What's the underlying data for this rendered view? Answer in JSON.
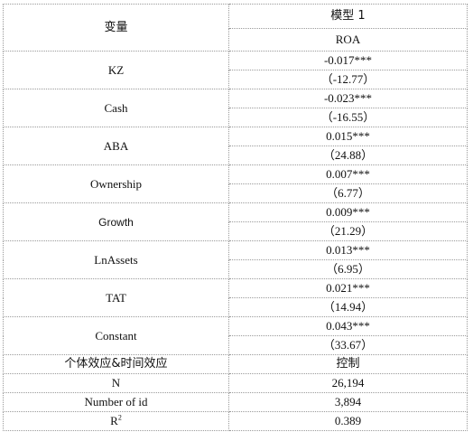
{
  "header": {
    "variable_label": "变量",
    "model_label": "模型 1",
    "dependent_var": "ROA"
  },
  "rows": [
    {
      "name": "KZ",
      "coef": "-0.017***",
      "tstat": "（-12.77）"
    },
    {
      "name": "Cash",
      "coef": "-0.023***",
      "tstat": "（-16.55）"
    },
    {
      "name": "ABA",
      "coef": "0.015***",
      "tstat": "（24.88）"
    },
    {
      "name": "Ownership",
      "coef": "0.007***",
      "tstat": "（6.77）"
    },
    {
      "name": "Growth",
      "coef": "0.009***",
      "tstat": "（21.29）"
    },
    {
      "name": "LnAssets",
      "coef": "0.013***",
      "tstat": "（6.95）"
    },
    {
      "name": "TAT",
      "coef": "0.021***",
      "tstat": "（14.94）"
    },
    {
      "name": "Constant",
      "coef": "0.043***",
      "tstat": "（33.67）"
    }
  ],
  "footer": {
    "fixed_effects_label": "个体效应&时间效应",
    "fixed_effects_value": "控制",
    "n_label": "N",
    "n_value": "26,194",
    "ids_label": "Number of id",
    "ids_value": "3,894",
    "r2_label": "R",
    "r2_sup": "2",
    "r2_value": "0.389"
  }
}
